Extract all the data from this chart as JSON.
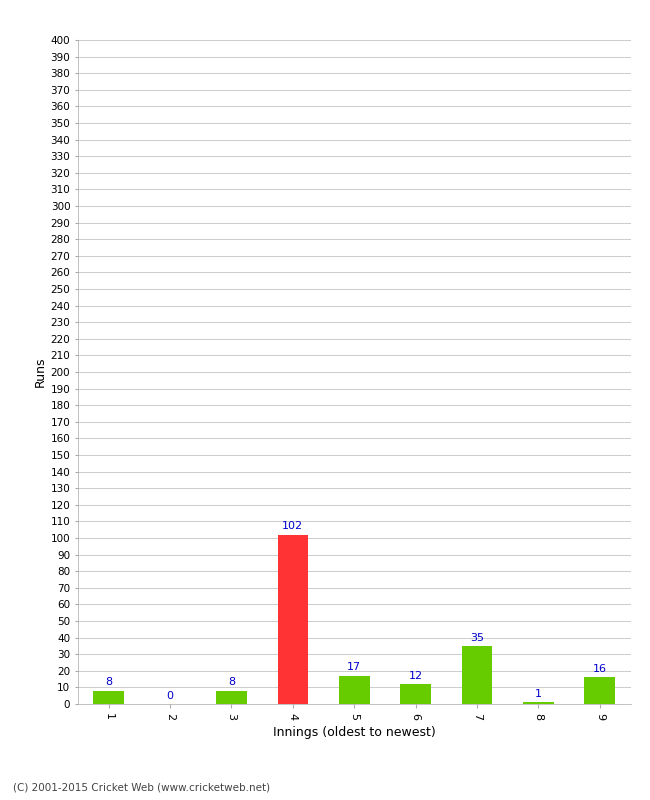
{
  "xlabel": "Innings (oldest to newest)",
  "ylabel": "Runs",
  "categories": [
    "1",
    "2",
    "3",
    "4",
    "5",
    "6",
    "7",
    "8",
    "9"
  ],
  "values": [
    8,
    0,
    8,
    102,
    17,
    12,
    35,
    1,
    16
  ],
  "bar_colors": [
    "#66cc00",
    "#66cc00",
    "#66cc00",
    "#ff3333",
    "#66cc00",
    "#66cc00",
    "#66cc00",
    "#66cc00",
    "#66cc00"
  ],
  "ylim": [
    0,
    400
  ],
  "yticks": [
    0,
    10,
    20,
    30,
    40,
    50,
    60,
    70,
    80,
    90,
    100,
    110,
    120,
    130,
    140,
    150,
    160,
    170,
    180,
    190,
    200,
    210,
    220,
    230,
    240,
    250,
    260,
    270,
    280,
    290,
    300,
    310,
    320,
    330,
    340,
    350,
    360,
    370,
    380,
    390,
    400
  ],
  "background_color": "#ffffff",
  "grid_color": "#cccccc",
  "label_color": "#0000cc",
  "footer": "(C) 2001-2015 Cricket Web (www.cricketweb.net)",
  "bar_width": 0.5
}
